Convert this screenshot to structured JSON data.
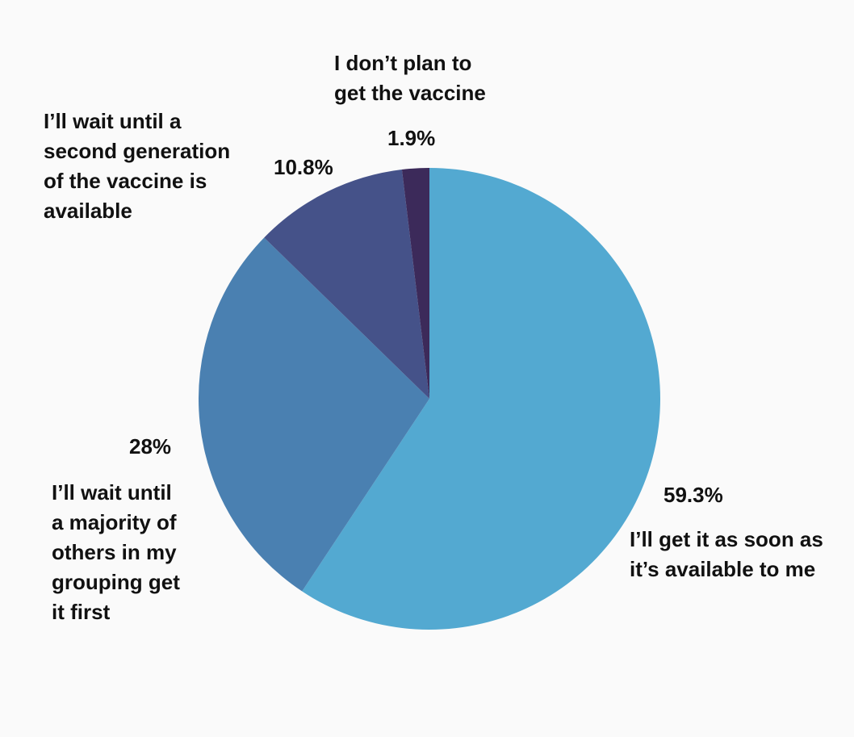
{
  "chart_data": {
    "type": "pie",
    "start_angle": "top, clockwise",
    "slices": [
      {
        "label": "I’ll get it as soon as\nit’s available to me",
        "value": 59.3,
        "value_label": "59.3%",
        "color": "#53a9d1"
      },
      {
        "label": "I’ll wait until\na majority of\nothers in my\ngrouping get\nit first",
        "value": 28,
        "value_label": "28%",
        "color": "#4a80b1"
      },
      {
        "label": "I’ll wait until a\nsecond generation\nof the vaccine is\navailable",
        "value": 10.8,
        "value_label": "10.8%",
        "color": "#455289"
      },
      {
        "label": "I don’t plan to\nget the vaccine",
        "value": 1.9,
        "value_label": "1.9%",
        "color": "#3c2a5a"
      }
    ],
    "legend": "none (direct labels)"
  }
}
